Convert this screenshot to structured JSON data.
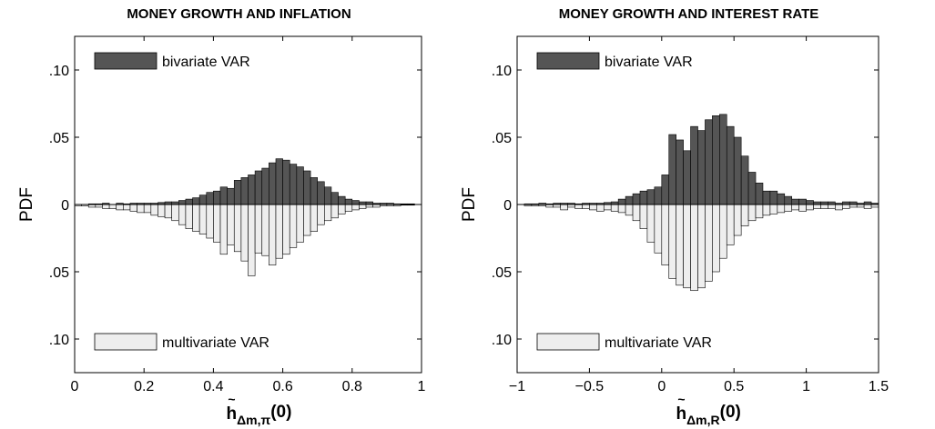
{
  "chart_data": [
    {
      "type": "histogram",
      "title": "MONEY GROWTH AND INFLATION",
      "ylabel": "PDF",
      "xlabel_symbol": "h",
      "xlabel_accent": "~",
      "xlabel_subscript": "Δm,π",
      "xlabel_argument": "(0)",
      "bins": [
        0,
        0.02,
        0.04,
        0.06,
        0.08,
        0.1,
        0.12,
        0.14,
        0.16,
        0.18,
        0.2,
        0.22,
        0.24,
        0.26,
        0.28,
        0.3,
        0.32,
        0.34,
        0.36,
        0.38,
        0.4,
        0.42,
        0.44,
        0.46,
        0.48,
        0.5,
        0.52,
        0.54,
        0.56,
        0.58,
        0.6,
        0.62,
        0.64,
        0.66,
        0.68,
        0.7,
        0.72,
        0.74,
        0.76,
        0.78,
        0.8,
        0.82,
        0.84,
        0.86,
        0.88,
        0.9,
        0.92,
        0.94,
        0.96,
        0.98,
        1
      ],
      "series": [
        {
          "name": "bivariate VAR",
          "color": "#555555",
          "values": [
            0,
            0,
            0.0005,
            0.0005,
            0.001,
            0,
            0.001,
            0.0005,
            0.001,
            0.001,
            0.001,
            0.001,
            0.0015,
            0.002,
            0.002,
            0.003,
            0.004,
            0.005,
            0.007,
            0.009,
            0.01,
            0.013,
            0.012,
            0.018,
            0.02,
            0.022,
            0.025,
            0.027,
            0.031,
            0.034,
            0.033,
            0.03,
            0.028,
            0.025,
            0.02,
            0.017,
            0.013,
            0.009,
            0.006,
            0.004,
            0.003,
            0.002,
            0.002,
            0.001,
            0.001,
            0.001,
            0.0005,
            0.0005,
            0.0005,
            0
          ]
        },
        {
          "name": "multivariate VAR",
          "color": "#eeeeee",
          "values": [
            -0.001,
            -0.001,
            -0.002,
            -0.002,
            -0.003,
            -0.003,
            -0.004,
            -0.004,
            -0.005,
            -0.006,
            -0.006,
            -0.008,
            -0.009,
            -0.01,
            -0.012,
            -0.015,
            -0.018,
            -0.02,
            -0.022,
            -0.025,
            -0.028,
            -0.037,
            -0.03,
            -0.035,
            -0.042,
            -0.053,
            -0.036,
            -0.038,
            -0.045,
            -0.04,
            -0.037,
            -0.032,
            -0.028,
            -0.023,
            -0.02,
            -0.015,
            -0.012,
            -0.01,
            -0.007,
            -0.005,
            -0.004,
            -0.003,
            -0.002,
            -0.002,
            -0.001,
            -0.001,
            -0.001,
            -0.0005,
            -0.0005,
            0
          ]
        }
      ],
      "xlim": [
        0,
        1
      ],
      "xticks": [
        0,
        0.2,
        0.4,
        0.6,
        0.8,
        1
      ],
      "ylim": [
        -0.125,
        0.125
      ],
      "yticks": [
        {
          "value": 0.1,
          "label": ".10"
        },
        {
          "value": 0.05,
          "label": ".05"
        },
        0,
        {
          "value": -0.05,
          "label": ".05"
        },
        {
          "value": -0.1,
          "label": ".10"
        }
      ],
      "legend_loc": "left"
    },
    {
      "type": "histogram",
      "title": "MONEY GROWTH AND INTEREST RATE",
      "ylabel": "PDF",
      "xlabel_symbol": "h",
      "xlabel_accent": "~",
      "xlabel_subscript": "Δm,R",
      "xlabel_argument": "(0)",
      "bins": [
        -1,
        -0.95,
        -0.9,
        -0.85,
        -0.8,
        -0.75,
        -0.7,
        -0.65,
        -0.6,
        -0.55,
        -0.5,
        -0.45,
        -0.4,
        -0.35,
        -0.3,
        -0.25,
        -0.2,
        -0.15,
        -0.1,
        -0.05,
        0,
        0.05,
        0.1,
        0.15,
        0.2,
        0.25,
        0.3,
        0.35,
        0.4,
        0.45,
        0.5,
        0.55,
        0.6,
        0.65,
        0.7,
        0.75,
        0.8,
        0.85,
        0.9,
        0.95,
        1,
        1.05,
        1.1,
        1.15,
        1.2,
        1.25,
        1.3,
        1.35,
        1.4,
        1.45,
        1.5
      ],
      "series": [
        {
          "name": "bivariate VAR",
          "color": "#555555",
          "values": [
            0,
            0.0005,
            0.0005,
            0.001,
            0.0005,
            0.001,
            0.001,
            0.001,
            0.0005,
            0.001,
            0.001,
            0.001,
            0.0015,
            0.002,
            0.004,
            0.006,
            0.008,
            0.01,
            0.011,
            0.013,
            0.022,
            0.052,
            0.048,
            0.04,
            0.058,
            0.055,
            0.063,
            0.066,
            0.067,
            0.058,
            0.05,
            0.036,
            0.024,
            0.016,
            0.01,
            0.01,
            0.008,
            0.006,
            0.004,
            0.004,
            0.003,
            0.002,
            0.002,
            0.002,
            0.001,
            0.002,
            0.002,
            0.001,
            0.002,
            0.001
          ]
        },
        {
          "name": "multivariate VAR",
          "color": "#eeeeee",
          "values": [
            0,
            -0.001,
            -0.001,
            -0.001,
            -0.002,
            -0.002,
            -0.004,
            -0.002,
            -0.003,
            -0.003,
            -0.004,
            -0.005,
            -0.004,
            -0.005,
            -0.006,
            -0.008,
            -0.012,
            -0.018,
            -0.028,
            -0.036,
            -0.045,
            -0.055,
            -0.06,
            -0.062,
            -0.064,
            -0.062,
            -0.057,
            -0.05,
            -0.04,
            -0.03,
            -0.023,
            -0.016,
            -0.012,
            -0.01,
            -0.008,
            -0.007,
            -0.006,
            -0.005,
            -0.004,
            -0.005,
            -0.004,
            -0.003,
            -0.003,
            -0.003,
            -0.004,
            -0.003,
            -0.002,
            -0.002,
            -0.003,
            -0.002
          ]
        }
      ],
      "xlim": [
        -1,
        1.5
      ],
      "xticks": [
        {
          "value": -1,
          "label": "−1"
        },
        {
          "value": -0.5,
          "label": "−0.5"
        },
        0,
        0.5,
        1,
        1.5
      ],
      "ylim": [
        -0.125,
        0.125
      ],
      "yticks": [
        {
          "value": 0.1,
          "label": ".10"
        },
        {
          "value": 0.05,
          "label": ".05"
        },
        0,
        {
          "value": -0.05,
          "label": ".05"
        },
        {
          "value": -0.1,
          "label": ".10"
        }
      ],
      "legend_loc": "left"
    }
  ]
}
